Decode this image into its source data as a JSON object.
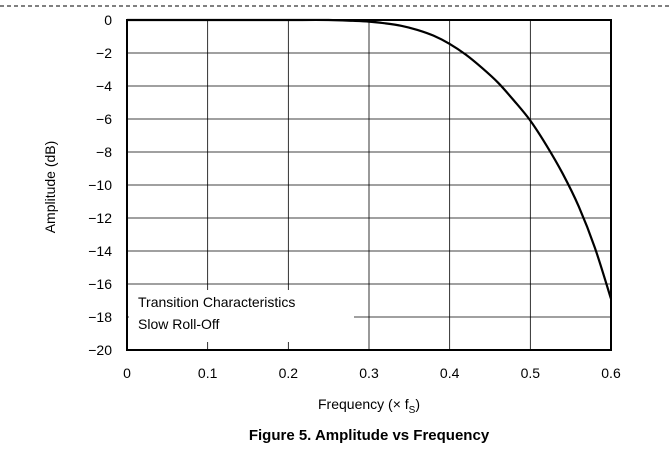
{
  "chart_data": {
    "type": "line",
    "title": "",
    "caption": "Figure 5. Amplitude vs Frequency",
    "xlabel_main": "Frequency (× f",
    "xlabel_sub": "S",
    "xlabel_end": ")",
    "ylabel": "Amplitude (dB)",
    "xlim": [
      0,
      0.6
    ],
    "ylim": [
      -20,
      0
    ],
    "xticks": [
      0,
      0.1,
      0.2,
      0.3,
      0.4,
      0.5,
      0.6
    ],
    "xtick_labels": [
      "0",
      "0.1",
      "0.2",
      "0.3",
      "0.4",
      "0.5",
      "0.6"
    ],
    "yticks": [
      0,
      -2,
      -4,
      -6,
      -8,
      -10,
      -12,
      -14,
      -16,
      -18,
      -20
    ],
    "ytick_labels": [
      "0",
      "−2",
      "−4",
      "−6",
      "−8",
      "−10",
      "−12",
      "−14",
      "−16",
      "−18",
      "−20"
    ],
    "grid": true,
    "annotation": [
      "Transition Characteristics",
      "Slow Roll-Off"
    ],
    "series": [
      {
        "x": [
          0,
          0.05,
          0.1,
          0.15,
          0.2,
          0.25,
          0.28,
          0.3,
          0.32,
          0.34,
          0.36,
          0.38,
          0.4,
          0.42,
          0.44,
          0.46,
          0.48,
          0.5,
          0.52,
          0.54,
          0.56,
          0.58,
          0.6
        ],
        "y": [
          0,
          0,
          0,
          0,
          0,
          0,
          -0.05,
          -0.1,
          -0.2,
          -0.35,
          -0.6,
          -0.95,
          -1.45,
          -2.1,
          -2.9,
          -3.8,
          -4.9,
          -6.1,
          -7.6,
          -9.3,
          -11.3,
          -13.8,
          -16.9
        ]
      }
    ]
  }
}
